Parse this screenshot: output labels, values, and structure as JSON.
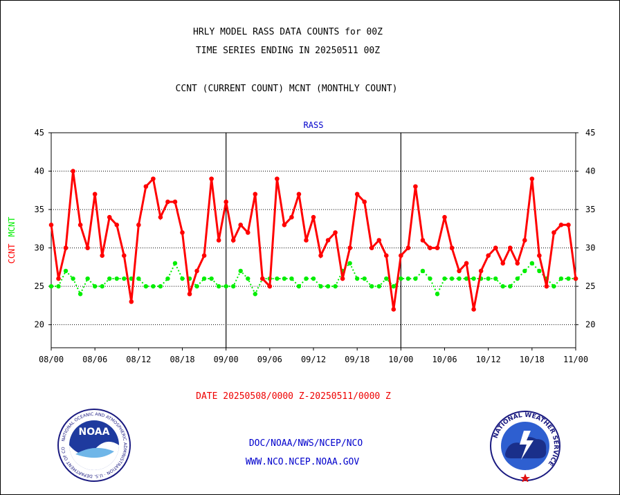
{
  "header": {
    "line1": "HRLY MODEL RASS DATA COUNTS for 00Z",
    "line2": "TIME SERIES ENDING IN 20250511 00Z",
    "line3": "CCNT (CURRENT COUNT) MCNT (MONTHLY COUNT)"
  },
  "footer": {
    "date_range": "DATE 20250508/0000 Z-20250511/0000 Z",
    "org": "DOC/NOAA/NWS/NCEP/NCO",
    "url": "WWW.NCO.NCEP.NOAA.GOV"
  },
  "logos": {
    "left": "NOAA",
    "left_ring": "NATIONAL OCEANIC AND ATMOSPHERIC ADMINISTRATION · U.S. DEPARTMENT OF COMMERCE",
    "right_ring": "NATIONAL WEATHER SERVICE"
  },
  "colors": {
    "ccnt": "#ff0000",
    "mcnt": "#00ee00",
    "title": "#0000cc",
    "axis": "#000000"
  },
  "chart_data": {
    "type": "line",
    "title": "RASS",
    "ylabel_parts": [
      "CCNT",
      "MCNT"
    ],
    "ylim": [
      17,
      45
    ],
    "yticks": [
      20,
      25,
      30,
      35,
      40,
      45
    ],
    "xlim": [
      0,
      72
    ],
    "xticks": [
      0,
      6,
      12,
      18,
      24,
      30,
      36,
      42,
      48,
      54,
      60,
      66,
      72
    ],
    "xtick_labels": [
      "08/00",
      "08/06",
      "08/12",
      "08/18",
      "09/00",
      "09/06",
      "09/12",
      "09/18",
      "10/00",
      "10/06",
      "10/12",
      "10/18",
      "11/00"
    ],
    "day_dividers": [
      24,
      48
    ],
    "grid": true,
    "series": [
      {
        "name": "CCNT",
        "values": [
          33,
          26,
          30,
          40,
          33,
          30,
          37,
          29,
          34,
          33,
          29,
          23,
          33,
          38,
          39,
          34,
          36,
          36,
          32,
          24,
          27,
          29,
          39,
          31,
          36,
          31,
          33,
          32,
          37,
          26,
          25,
          39,
          33,
          34,
          37,
          31,
          34,
          29,
          31,
          32,
          26,
          30,
          37,
          36,
          30,
          31,
          29,
          22,
          29,
          30,
          38,
          31,
          30,
          30,
          34,
          30,
          27,
          28,
          22,
          27,
          29,
          30,
          28,
          30,
          28,
          31,
          39,
          29,
          25,
          32,
          33,
          33,
          26
        ]
      },
      {
        "name": "MCNT",
        "values": [
          25,
          25,
          27,
          26,
          24,
          26,
          25,
          25,
          26,
          26,
          26,
          26,
          26,
          25,
          25,
          25,
          26,
          28,
          26,
          26,
          25,
          26,
          26,
          25,
          25,
          25,
          27,
          26,
          24,
          26,
          26,
          26,
          26,
          26,
          25,
          26,
          26,
          25,
          25,
          25,
          27,
          28,
          26,
          26,
          25,
          25,
          26,
          25,
          26,
          26,
          26,
          27,
          26,
          24,
          26,
          26,
          26,
          26,
          26,
          26,
          26,
          26,
          25,
          25,
          26,
          27,
          28,
          27,
          26,
          25,
          26,
          26,
          26
        ]
      }
    ]
  }
}
